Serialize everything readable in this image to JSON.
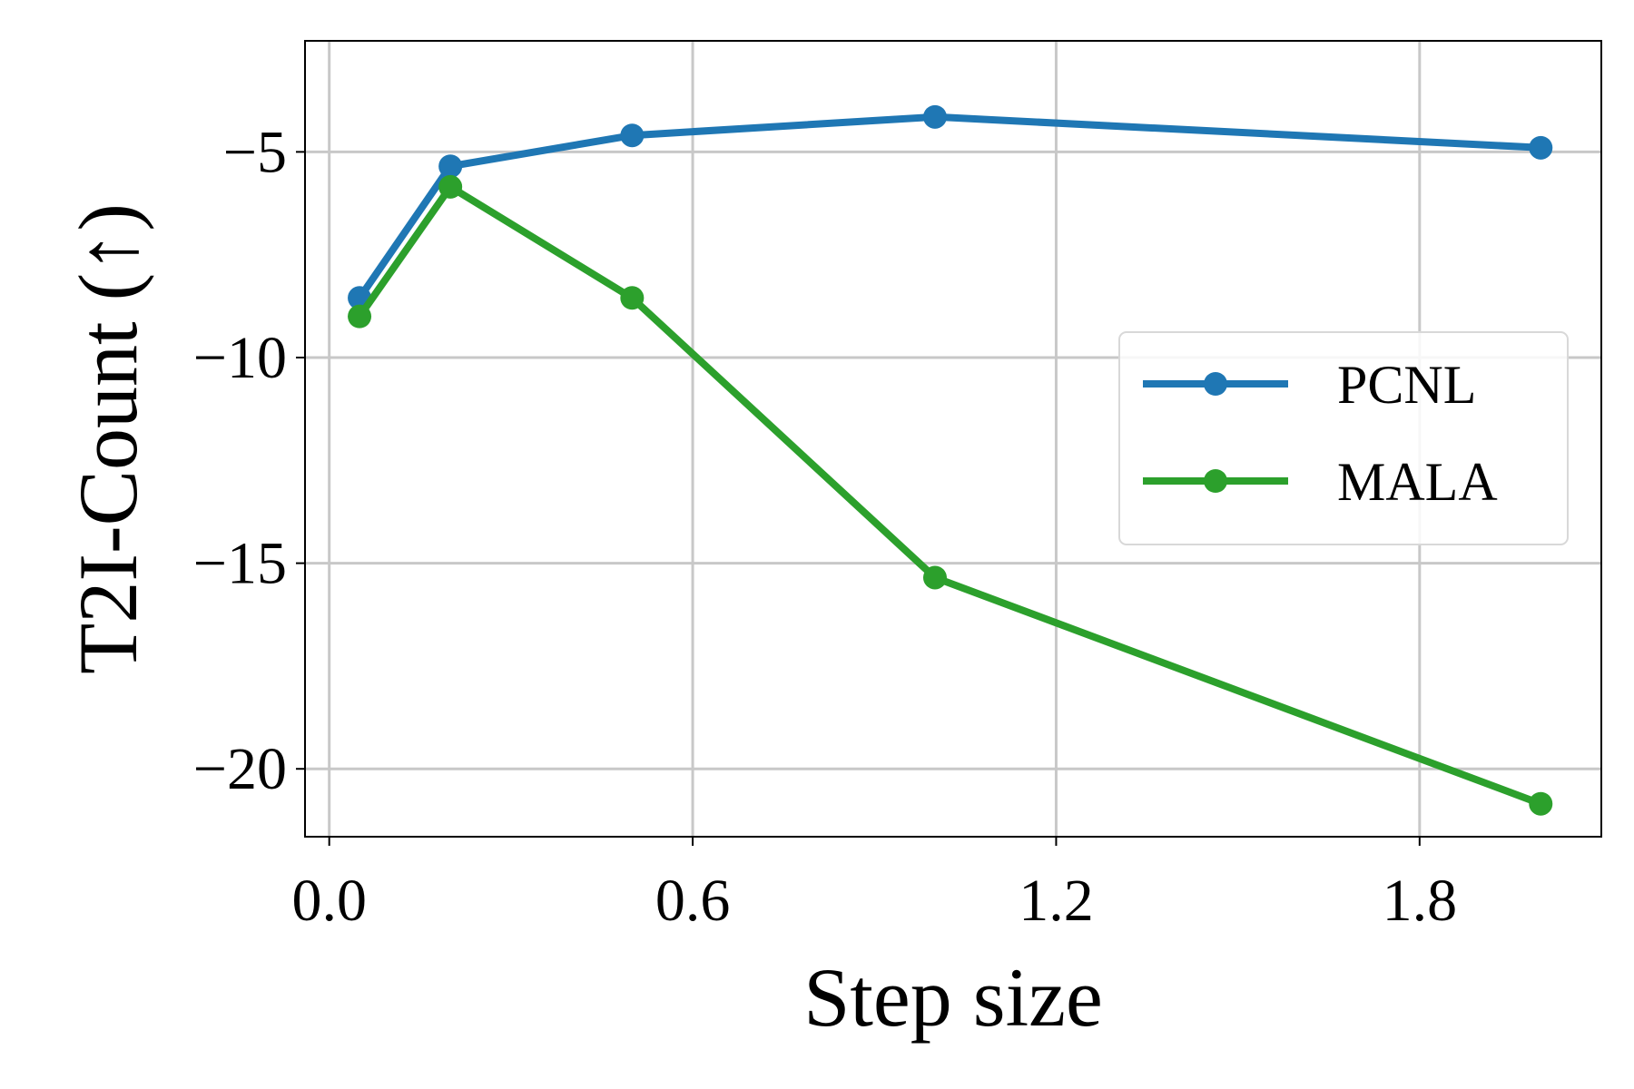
{
  "chart_data": {
    "type": "line",
    "xlabel": "Step size",
    "ylabel": "T2I-Count (↑)",
    "xlim": [
      -0.04,
      2.1
    ],
    "ylim": [
      -21.65,
      -2.3
    ],
    "x_ticks": [
      0.0,
      0.6,
      1.2,
      1.8
    ],
    "x_tick_labels": [
      "0.0",
      "0.6",
      "1.2",
      "1.8"
    ],
    "y_ticks": [
      -5,
      -10,
      -15,
      -20
    ],
    "y_tick_labels": [
      "−5",
      "−10",
      "−15",
      "−20"
    ],
    "grid": true,
    "legend_position": "center-right",
    "series": [
      {
        "name": "PCNL",
        "color": "#1f77b4",
        "marker": "circle",
        "x": [
          0.05,
          0.2,
          0.5,
          1.0,
          2.0
        ],
        "y": [
          -8.55,
          -5.35,
          -4.6,
          -4.15,
          -4.9
        ]
      },
      {
        "name": "MALA",
        "color": "#2ca02c",
        "marker": "circle",
        "x": [
          0.05,
          0.2,
          0.5,
          1.0,
          2.0
        ],
        "y": [
          -9.0,
          -5.85,
          -8.55,
          -15.35,
          -20.85
        ]
      }
    ]
  }
}
